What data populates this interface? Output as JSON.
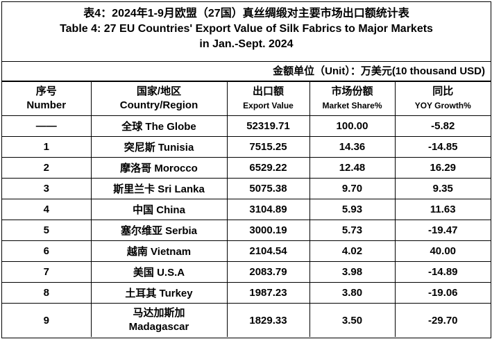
{
  "title": {
    "zh": "表4：2024年1-9月欧盟（27国）真丝绸缎对主要市场出口额统计表",
    "en": [
      "Table 4: 27 EU Countries' Export Value of Silk Fabrics to Major Markets",
      "in Jan.-Sept. 2024"
    ]
  },
  "unit": "金额单位（Unit）：万美元(10 thousand USD)",
  "table": {
    "header": [
      [
        "序号",
        "Number"
      ],
      [
        "国家/地区",
        "Country/Region"
      ],
      [
        "出口额",
        "Export Value"
      ],
      [
        "市场份额",
        "Market Share%"
      ],
      [
        "同比",
        "YOY Growth%"
      ]
    ],
    "rows": [
      [
        "——",
        "全球 The Globe",
        "52319.71",
        "100.00",
        "-5.82"
      ],
      [
        "1",
        "突尼斯 Tunisia",
        "7515.25",
        "14.36",
        "-14.85"
      ],
      [
        "2",
        "摩洛哥 Morocco",
        "6529.22",
        "12.48",
        "16.29"
      ],
      [
        "3",
        "斯里兰卡 Sri Lanka",
        "5075.38",
        "9.70",
        "9.35"
      ],
      [
        "4",
        "中国 China",
        "3104.89",
        "5.93",
        "11.63"
      ],
      [
        "5",
        "塞尔维亚 Serbia",
        "3000.19",
        "5.73",
        "-19.47"
      ],
      [
        "6",
        "越南 Vietnam",
        "2104.54",
        "4.02",
        "40.00"
      ],
      [
        "7",
        "美国 U.S.A",
        "2083.79",
        "3.98",
        "-14.89"
      ],
      [
        "8",
        "土耳其 Turkey",
        "1987.23",
        "3.80",
        "-19.06"
      ],
      [
        "9",
        "马达加斯加 Madagascar",
        "1829.33",
        "3.50",
        "-29.70"
      ]
    ]
  }
}
